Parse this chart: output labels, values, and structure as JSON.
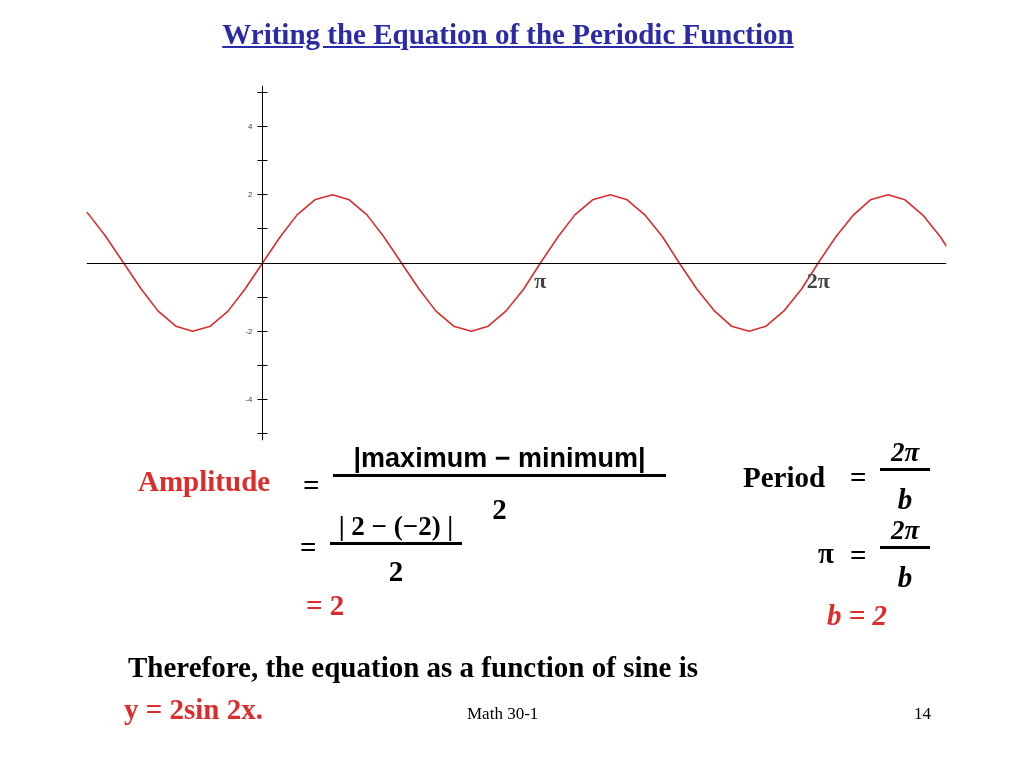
{
  "chart_data": {
    "type": "line",
    "title": "Writing the Equation of the Periodic Function",
    "x": [
      -1.99,
      -1.96,
      -1.77,
      -1.57,
      -1.37,
      -1.18,
      -0.98,
      -0.79,
      -0.59,
      -0.39,
      -0.2,
      0,
      0.2,
      0.39,
      0.59,
      0.79,
      0.98,
      1.18,
      1.37,
      1.57,
      1.77,
      1.96,
      2.16,
      2.36,
      2.55,
      2.75,
      2.95,
      3.14,
      3.34,
      3.53,
      3.73,
      3.93,
      4.12,
      4.32,
      4.52,
      4.71,
      4.91,
      5.11,
      5.3,
      5.5,
      5.69,
      5.89,
      6.09,
      6.28,
      6.48,
      6.68,
      6.87,
      7.07,
      7.26,
      7.46,
      7.66,
      7.73
    ],
    "series": [
      {
        "color": "#dd2c2c",
        "values": [
          1.49,
          1.41,
          0.77,
          0,
          -0.77,
          -1.41,
          -1.85,
          -2,
          -1.85,
          -1.41,
          -0.77,
          0,
          0.77,
          1.41,
          1.85,
          2,
          1.85,
          1.41,
          0.77,
          0,
          -0.77,
          -1.41,
          -1.85,
          -2,
          -1.85,
          -1.41,
          -0.77,
          0,
          0.77,
          1.41,
          1.85,
          2,
          1.85,
          1.41,
          0.77,
          0,
          -0.77,
          -1.41,
          -1.85,
          -2,
          -1.85,
          -1.41,
          -0.77,
          0,
          0.77,
          1.41,
          1.85,
          2,
          1.85,
          1.41,
          0.77,
          0.49
        ]
      }
    ],
    "xlim": [
      -1.99,
      7.73
    ],
    "ylim": [
      -5.2,
      5.2
    ],
    "xticks": [
      {
        "value": 3.14,
        "label": "π"
      },
      {
        "value": 6.28,
        "label": "2π"
      }
    ],
    "yticks": [
      {
        "value": -5,
        "label": null
      },
      -4,
      {
        "value": -3,
        "label": null
      },
      -2,
      {
        "value": -1,
        "label": null
      },
      {
        "value": 1,
        "label": null
      },
      2,
      {
        "value": 3,
        "label": null
      },
      4,
      {
        "value": 5,
        "label": null
      }
    ],
    "line_style": "solid",
    "annotations": [
      "Amplitude",
      "=",
      "|maximum − minimum|",
      "2",
      "=",
      "| 2 − (−2) |",
      "2",
      "= 2",
      "Period",
      "=",
      "2π",
      "b",
      "π",
      "=",
      "2π",
      "b",
      "b = 2",
      "Therefore, the equation as a function of sine is",
      "y = 2sin 2x.",
      "Math 30-1",
      "14"
    ]
  }
}
